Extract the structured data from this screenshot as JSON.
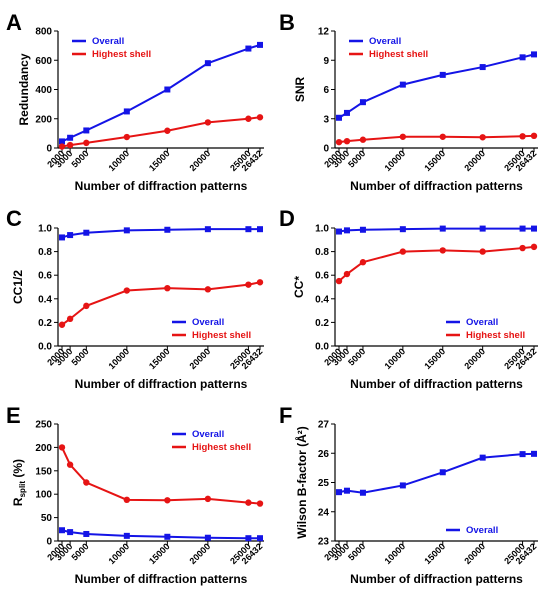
{
  "chart_data": [
    {
      "panel": "A",
      "type": "line",
      "ylabel": "Redundancy",
      "xlabel": "Number of diffraction patterns",
      "x": [
        2000,
        3000,
        5000,
        10000,
        15000,
        20000,
        25000,
        26432
      ],
      "xticks": [
        "2000",
        "3000",
        "5000",
        "10000",
        "15000",
        "20000",
        "25000",
        "26432"
      ],
      "ylim": [
        0,
        800
      ],
      "yticks": [
        "0",
        "200",
        "400",
        "600",
        "800"
      ],
      "legend": "top-left",
      "series": [
        {
          "name": "Overall",
          "color": "#1414e6",
          "marker": "square",
          "values": [
            45,
            70,
            120,
            250,
            400,
            580,
            680,
            705
          ]
        },
        {
          "name": "Highest shell",
          "color": "#e61414",
          "marker": "circle",
          "values": [
            10,
            20,
            35,
            75,
            118,
            175,
            200,
            210
          ]
        }
      ]
    },
    {
      "panel": "B",
      "type": "line",
      "ylabel": "SNR",
      "xlabel": "Number of diffraction patterns",
      "x": [
        2000,
        3000,
        5000,
        10000,
        15000,
        20000,
        25000,
        26432
      ],
      "xticks": [
        "2000",
        "3000",
        "5000",
        "10000",
        "15000",
        "20000",
        "25000",
        "26432"
      ],
      "ylim": [
        0,
        12
      ],
      "yticks": [
        "0",
        "3",
        "6",
        "9",
        "12"
      ],
      "legend": "top-left",
      "series": [
        {
          "name": "Overall",
          "color": "#1414e6",
          "marker": "square",
          "values": [
            3.1,
            3.6,
            4.7,
            6.5,
            7.5,
            8.3,
            9.3,
            9.6
          ]
        },
        {
          "name": "Highest shell",
          "color": "#e61414",
          "marker": "circle",
          "values": [
            0.6,
            0.7,
            0.85,
            1.15,
            1.15,
            1.1,
            1.2,
            1.25
          ]
        }
      ]
    },
    {
      "panel": "C",
      "type": "line",
      "ylabel": "CC1/2",
      "xlabel": "Number of diffraction patterns",
      "x": [
        2000,
        3000,
        5000,
        10000,
        15000,
        20000,
        25000,
        26432
      ],
      "xticks": [
        "2000",
        "3000",
        "5000",
        "10000",
        "15000",
        "20000",
        "25000",
        "26432"
      ],
      "ylim": [
        0,
        1.0
      ],
      "yticks": [
        "0.0",
        "0.2",
        "0.4",
        "0.6",
        "0.8",
        "1.0"
      ],
      "legend": "bottom-right",
      "series": [
        {
          "name": "Overall",
          "color": "#1414e6",
          "marker": "square",
          "values": [
            0.92,
            0.94,
            0.96,
            0.98,
            0.985,
            0.99,
            0.99,
            0.99
          ]
        },
        {
          "name": "Highest shell",
          "color": "#e61414",
          "marker": "circle",
          "values": [
            0.18,
            0.23,
            0.34,
            0.47,
            0.49,
            0.48,
            0.52,
            0.54
          ]
        }
      ]
    },
    {
      "panel": "D",
      "type": "line",
      "ylabel": "CC*",
      "xlabel": "Number of diffraction patterns",
      "x": [
        2000,
        3000,
        5000,
        10000,
        15000,
        20000,
        25000,
        26432
      ],
      "xticks": [
        "2000",
        "3000",
        "5000",
        "10000",
        "15000",
        "20000",
        "25000",
        "26432"
      ],
      "ylim": [
        0,
        1.0
      ],
      "yticks": [
        "0.0",
        "0.2",
        "0.4",
        "0.6",
        "0.8",
        "1.0"
      ],
      "legend": "bottom-right",
      "series": [
        {
          "name": "Overall",
          "color": "#1414e6",
          "marker": "square",
          "values": [
            0.97,
            0.98,
            0.985,
            0.99,
            0.995,
            0.995,
            0.995,
            0.995
          ]
        },
        {
          "name": "Highest shell",
          "color": "#e61414",
          "marker": "circle",
          "values": [
            0.55,
            0.61,
            0.71,
            0.8,
            0.81,
            0.8,
            0.83,
            0.84
          ]
        }
      ]
    },
    {
      "panel": "E",
      "type": "line",
      "ylabel": "Rsplit (%)",
      "ylabel_main": "R",
      "ylabel_sub": "split",
      "ylabel_rest": " (%)",
      "xlabel": "Number of diffraction patterns",
      "x": [
        2000,
        3000,
        5000,
        10000,
        15000,
        20000,
        25000,
        26432
      ],
      "xticks": [
        "2000",
        "3000",
        "5000",
        "10000",
        "15000",
        "20000",
        "25000",
        "26432"
      ],
      "ylim": [
        0,
        250
      ],
      "yticks": [
        "0",
        "50",
        "100",
        "150",
        "200",
        "250"
      ],
      "legend": "top-right",
      "series": [
        {
          "name": "Overall",
          "color": "#1414e6",
          "marker": "square",
          "values": [
            23,
            19,
            15,
            11,
            9,
            7,
            6,
            6
          ]
        },
        {
          "name": "Highest shell",
          "color": "#e61414",
          "marker": "circle",
          "values": [
            200,
            163,
            125,
            88,
            87,
            90,
            82,
            80
          ]
        }
      ]
    },
    {
      "panel": "F",
      "type": "line",
      "ylabel": "Wilson B-factor (Å²)",
      "xlabel": "Number of diffraction patterns",
      "x": [
        2000,
        3000,
        5000,
        10000,
        15000,
        20000,
        25000,
        26432
      ],
      "xticks": [
        "2000",
        "3000",
        "5000",
        "10000",
        "15000",
        "20000",
        "25000",
        "26432"
      ],
      "ylim": [
        23,
        27
      ],
      "yticks": [
        "23",
        "24",
        "25",
        "26",
        "27"
      ],
      "legend": "bottom-right",
      "series": [
        {
          "name": "Overall",
          "color": "#1414e6",
          "marker": "square",
          "values": [
            24.67,
            24.72,
            24.65,
            24.9,
            25.35,
            25.85,
            25.97,
            25.98
          ]
        }
      ]
    }
  ]
}
